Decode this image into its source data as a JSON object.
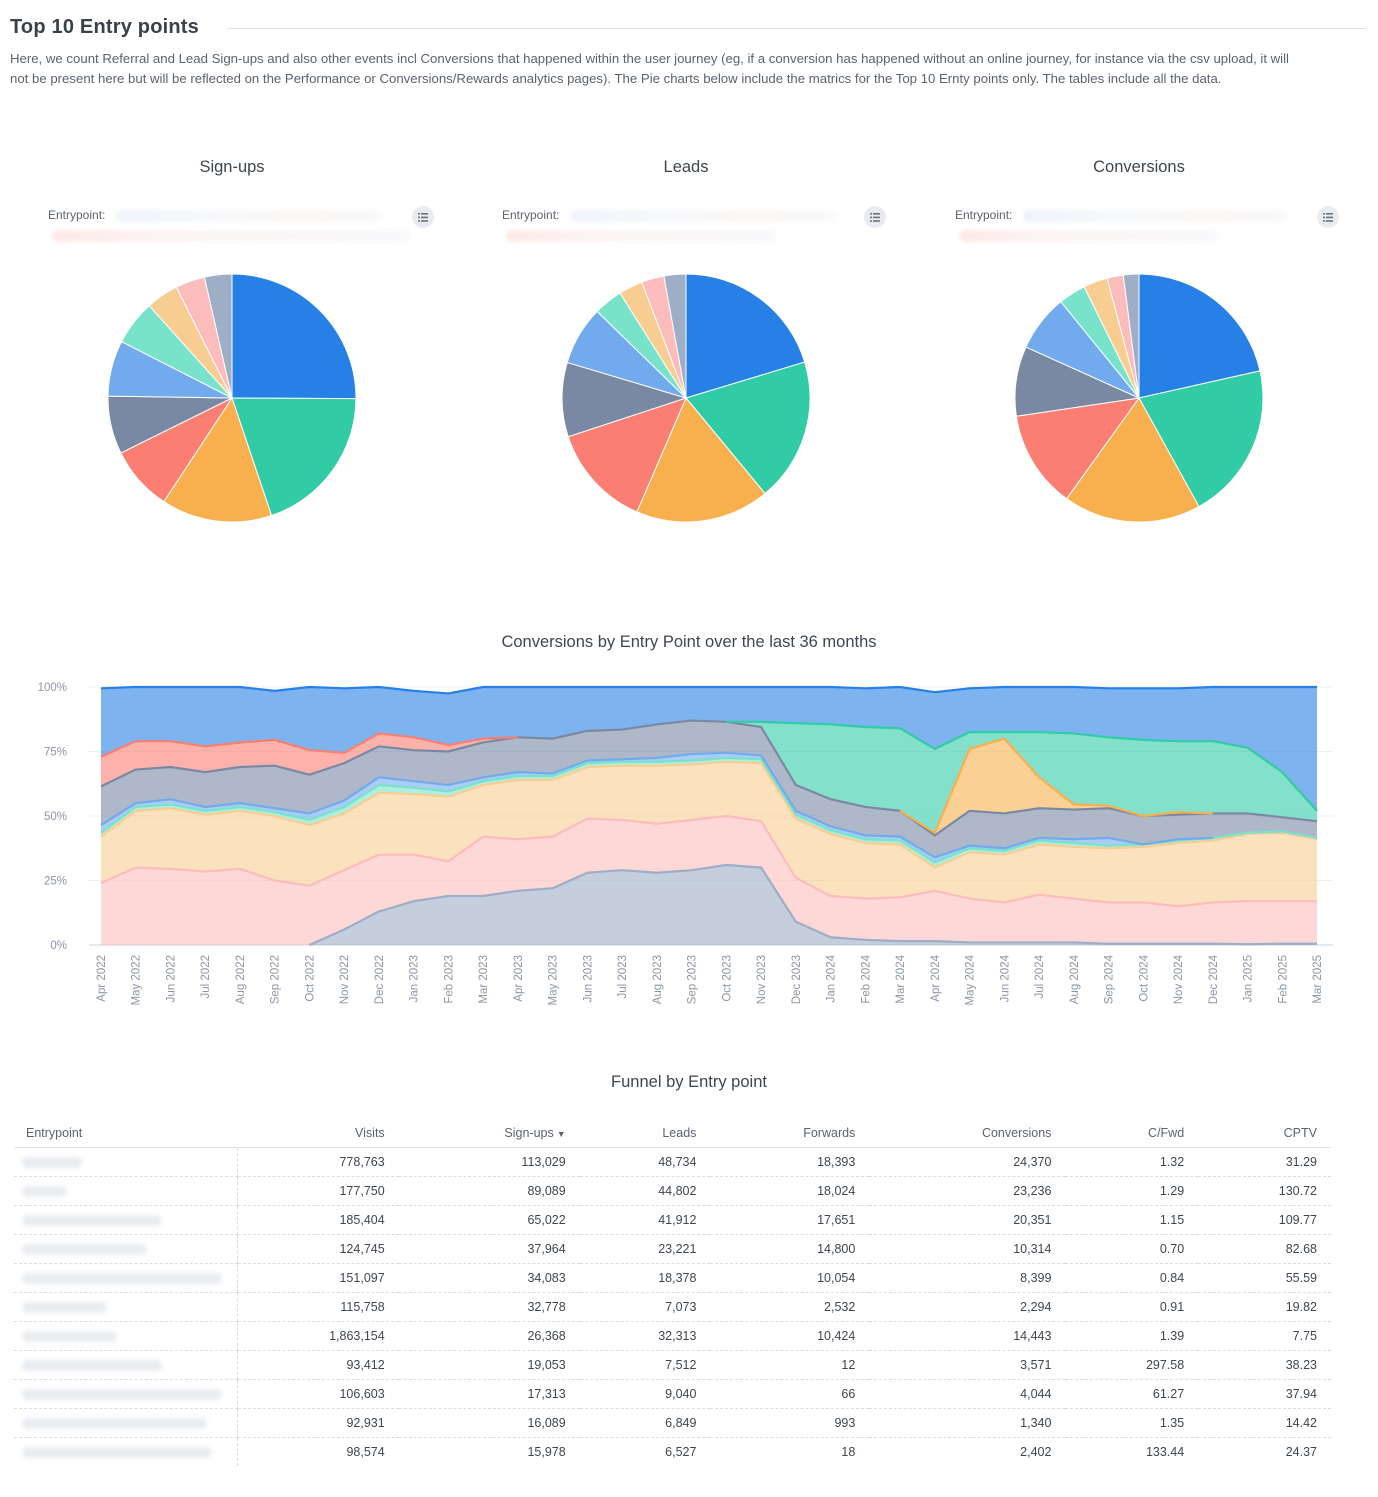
{
  "header": {
    "title": "Top 10 Entry points",
    "description": "Here, we count Referral and Lead Sign-ups and also other events incl Conversions that happened within the user journey (eg, if a conversion has happened without an online journey, for instance via the csv upload, it will not be present here but will be reflected on the Performance or Conversions/Rewards analytics pages). The Pie charts below include the matrics for the Top 10 Ernty points only. The tables include all the data."
  },
  "legend_label": "Entrypoint:",
  "menu_icon": "hamburger-list-icon",
  "palette": [
    "#2680e5",
    "#31cba6",
    "#f8b04f",
    "#fa7f72",
    "#7a89a3",
    "#72aaee",
    "#78e2cb",
    "#f8cd91",
    "#fdbcbc",
    "#9eaec6"
  ],
  "chart_data": [
    {
      "type": "pie",
      "title": "Sign-ups",
      "legend_title": "Entrypoint:",
      "values": [
        113029,
        89089,
        65022,
        37964,
        34083,
        32778,
        26368,
        19053,
        17313,
        16089
      ]
    },
    {
      "type": "pie",
      "title": "Leads",
      "legend_title": "Entrypoint:",
      "values": [
        48734,
        44802,
        41912,
        32313,
        23221,
        18378,
        9040,
        7512,
        7073,
        6849
      ]
    },
    {
      "type": "pie",
      "title": "Conversions",
      "legend_title": "Entrypoint:",
      "values": [
        24370,
        23236,
        20351,
        14443,
        10314,
        8399,
        4044,
        3571,
        2402,
        2294
      ]
    },
    {
      "type": "area",
      "stacking": "percent",
      "title": "Conversions by Entry Point over the last 36 months",
      "xlabel": "",
      "ylabel": "",
      "ylim": [
        0,
        100
      ],
      "yticks": [
        "0%",
        "25%",
        "50%",
        "75%",
        "100%"
      ],
      "grid": true,
      "x": [
        "Apr 2022",
        "May 2022",
        "Jun 2022",
        "Jul 2022",
        "Aug 2022",
        "Sep 2022",
        "Oct 2022",
        "Nov 2022",
        "Dec 2022",
        "Jan 2023",
        "Feb 2023",
        "Mar 2023",
        "Apr 2023",
        "May 2023",
        "Jun 2023",
        "Jul 2023",
        "Aug 2023",
        "Sep 2023",
        "Oct 2023",
        "Nov 2023",
        "Dec 2023",
        "Jan 2024",
        "Feb 2024",
        "Mar 2024",
        "Apr 2024",
        "May 2024",
        "Jun 2024",
        "Jul 2024",
        "Aug 2024",
        "Sep 2024",
        "Oct 2024",
        "Nov 2024",
        "Dec 2024",
        "Jan 2025",
        "Feb 2025",
        "Mar 2025"
      ],
      "series": [
        {
          "name": "entry-1",
          "color": "#9eaec6",
          "values": [
            0,
            0,
            0,
            0,
            0,
            0,
            0,
            6,
            13,
            17,
            19,
            19,
            21,
            22,
            28,
            29,
            28,
            29,
            31,
            30,
            9,
            3,
            2,
            1.5,
            1.5,
            1,
            1,
            1,
            1,
            0.5,
            0.5,
            0.5,
            0.5,
            0.3,
            0.5,
            0.5
          ]
        },
        {
          "name": "entry-2",
          "color": "#fdbcbc",
          "values": [
            24,
            30,
            29.5,
            28.5,
            29.5,
            25,
            23,
            23,
            22,
            18,
            13.5,
            23,
            20,
            20,
            21,
            19.5,
            19,
            19.5,
            19,
            18,
            17,
            16,
            16,
            17,
            19.5,
            17,
            15.5,
            18.5,
            17,
            16,
            16,
            14.5,
            16,
            16.7,
            16.5,
            16.5
          ]
        },
        {
          "name": "entry-3",
          "color": "#f8cd91",
          "values": [
            18,
            22,
            23.5,
            22,
            22.5,
            25,
            23.5,
            22,
            24,
            23.5,
            25,
            20,
            23,
            22,
            20,
            21,
            22.5,
            21.5,
            21,
            22.5,
            23,
            24,
            21.5,
            20.5,
            9,
            18,
            18.5,
            19.5,
            20,
            21,
            21.5,
            24.5,
            24,
            26,
            26.5,
            24
          ]
        },
        {
          "name": "entry-4",
          "color": "#78e2cb",
          "values": [
            1.5,
            1.5,
            1.5,
            1.5,
            1.5,
            1.5,
            2,
            2.5,
            3,
            2.5,
            2,
            1.5,
            1.5,
            1.5,
            1.5,
            1.5,
            1.5,
            1.5,
            1.5,
            1.5,
            1.5,
            1.5,
            1.5,
            1.5,
            2,
            1.5,
            1.5,
            1.5,
            1.5,
            1,
            1,
            1,
            1,
            0.5,
            0.5,
            0.5
          ]
        },
        {
          "name": "entry-5",
          "color": "#72aaee",
          "values": [
            3,
            1.5,
            2,
            1.5,
            1.5,
            1.5,
            2.5,
            2.5,
            3,
            2.5,
            2.5,
            1.5,
            1.5,
            1,
            1,
            1,
            1.5,
            2.5,
            2,
            1.5,
            1.5,
            1.5,
            1.5,
            1.5,
            2,
            1,
            1,
            1,
            1.5,
            3,
            0,
            0.5,
            0,
            0,
            0,
            0
          ]
        },
        {
          "name": "entry-6",
          "color": "#7a89a3",
          "values": [
            15,
            13,
            12.5,
            13.5,
            14,
            16.5,
            15,
            14.5,
            12,
            12,
            13,
            13.5,
            13.5,
            13.5,
            11.5,
            11.5,
            13,
            13,
            12,
            11,
            10,
            10.5,
            11,
            10,
            8.5,
            13.5,
            13.5,
            11.5,
            11.5,
            11.5,
            11,
            9.5,
            9.5,
            7.5,
            5.5,
            6.5
          ]
        },
        {
          "name": "entry-7",
          "color": "#fa7f72",
          "values": [
            11.5,
            11,
            10,
            10,
            9.5,
            10,
            9.5,
            4,
            5,
            5,
            2.5,
            1.5,
            0,
            0,
            0,
            0,
            0,
            0,
            0,
            0,
            0,
            0,
            0,
            0,
            0,
            0,
            0,
            0,
            0,
            0,
            0,
            0,
            0,
            0,
            0,
            0
          ]
        },
        {
          "name": "entry-8",
          "color": "#f8b04f",
          "values": [
            0,
            0,
            0,
            0,
            0,
            0,
            0,
            0,
            0,
            0,
            0,
            0,
            0,
            0,
            0,
            0,
            0,
            0,
            0,
            0,
            0,
            0,
            0,
            0,
            1,
            24,
            29,
            12,
            2,
            1,
            0,
            1,
            0,
            0,
            0,
            0
          ]
        },
        {
          "name": "entry-9",
          "color": "#31cba6",
          "values": [
            0,
            0,
            0,
            0,
            0,
            0,
            0,
            0,
            0,
            0,
            0,
            0,
            0,
            0,
            0,
            0,
            0,
            0,
            0,
            2,
            24,
            29,
            31,
            32,
            32.5,
            6.5,
            2.5,
            17.5,
            27.5,
            26.5,
            29.5,
            27.5,
            28,
            25.5,
            17.5,
            4
          ]
        },
        {
          "name": "entry-10",
          "color": "#2680e5",
          "values": [
            26.5,
            21,
            21,
            23,
            21.5,
            19,
            24.5,
            25,
            18,
            18,
            20,
            20,
            19.5,
            20,
            18,
            17,
            14.5,
            13.5,
            13.5,
            14,
            14,
            15.5,
            15,
            17,
            22,
            17,
            17.5,
            18.5,
            18,
            19,
            20,
            20.5,
            21,
            24,
            33,
            48
          ]
        }
      ]
    }
  ],
  "table": {
    "title": "Funnel by Entry point",
    "columns": [
      "Entrypoint",
      "Visits",
      "Sign-ups",
      "Leads",
      "Forwards",
      "Conversions",
      "C/Fwd",
      "CPTV"
    ],
    "sorted_column": "Sign-ups",
    "sort_direction": "descending",
    "sort_icon": "▼",
    "rows": [
      [
        "",
        "778,763",
        "113,029",
        "48,734",
        "18,393",
        "24,370",
        "1.32",
        "31.29"
      ],
      [
        "",
        "177,750",
        "89,089",
        "44,802",
        "18,024",
        "23,236",
        "1.29",
        "130.72"
      ],
      [
        "",
        "185,404",
        "65,022",
        "41,912",
        "17,651",
        "20,351",
        "1.15",
        "109.77"
      ],
      [
        "",
        "124,745",
        "37,964",
        "23,221",
        "14,800",
        "10,314",
        "0.70",
        "82.68"
      ],
      [
        "",
        "151,097",
        "34,083",
        "18,378",
        "10,054",
        "8,399",
        "0.84",
        "55.59"
      ],
      [
        "",
        "115,758",
        "32,778",
        "7,073",
        "2,532",
        "2,294",
        "0.91",
        "19.82"
      ],
      [
        "",
        "1,863,154",
        "26,368",
        "32,313",
        "10,424",
        "14,443",
        "1.39",
        "7.75"
      ],
      [
        "",
        "93,412",
        "19,053",
        "7,512",
        "12",
        "3,571",
        "297.58",
        "38.23"
      ],
      [
        "",
        "106,603",
        "17,313",
        "9,040",
        "66",
        "4,044",
        "61.27",
        "37.94"
      ],
      [
        "",
        "92,931",
        "16,089",
        "6,849",
        "993",
        "1,340",
        "1.35",
        "14.42"
      ],
      [
        "",
        "98,574",
        "15,978",
        "6,527",
        "18",
        "2,402",
        "133.44",
        "24.37"
      ]
    ]
  }
}
